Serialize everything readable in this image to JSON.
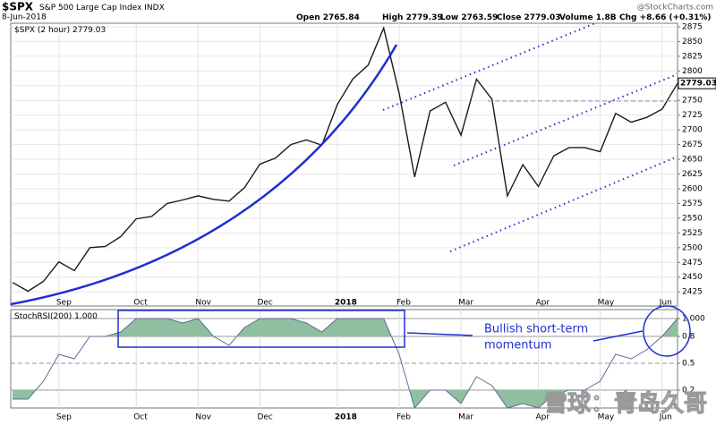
{
  "header": {
    "symbol": "$SPX",
    "name": "S&P 500 Large Cap Index",
    "exchange": "INDX",
    "source": "@StockCharts.com",
    "date": "8-Jun-2018",
    "quote": [
      {
        "label": "Open",
        "value": 2765.84
      },
      {
        "label": "High",
        "value": 2779.39
      },
      {
        "label": "Low",
        "value": 2763.59
      },
      {
        "label": "Close",
        "value": 2779.03
      },
      {
        "label": "Volume",
        "value": "1.8B"
      },
      {
        "label": "Chg",
        "value": "+8.66 (+0.31%)"
      }
    ]
  },
  "annotation": [
    "Bullish short-term",
    "momentum"
  ],
  "watermark": "雪球：青岛久哥",
  "chart_data": [
    {
      "type": "line",
      "categories": [
        null,
        null,
        null,
        "Sep",
        null,
        null,
        null,
        null,
        "Oct",
        null,
        null,
        null,
        "Nov",
        null,
        null,
        null,
        "Dec",
        null,
        null,
        null,
        null,
        "2018",
        null,
        null,
        null,
        "Feb",
        null,
        null,
        null,
        "Mar",
        null,
        null,
        null,
        null,
        "Apr",
        null,
        null,
        null,
        "May",
        null,
        null,
        null,
        "Jun",
        null
      ],
      "series": [
        {
          "name": "$SPX (2 hour)",
          "color": "#1a1a1a",
          "values": [
            2441,
            2426,
            2443,
            2476,
            2461,
            2500,
            2502,
            2519,
            2549,
            2553,
            2575,
            2581,
            2588,
            2582,
            2579,
            2602,
            2642,
            2652,
            2675,
            2683,
            2674,
            2743,
            2786,
            2810,
            2873,
            2762,
            2620,
            2732,
            2747,
            2691,
            2786,
            2752,
            2588,
            2641,
            2604,
            2656,
            2670,
            2670,
            2663,
            2728,
            2713,
            2721,
            2735,
            2779
          ]
        }
      ],
      "ylim": [
        2401,
        2881
      ],
      "yticks": [
        2425,
        2450,
        2475,
        2500,
        2525,
        2550,
        2575,
        2600,
        2625,
        2650,
        2675,
        2700,
        2725,
        2750,
        2775,
        2800,
        2825,
        2850,
        2875
      ],
      "grid": true
    },
    {
      "type": "line",
      "series": [
        {
          "name": "StochRSI(200)",
          "color": "#5b6d96",
          "values": [
            0.1,
            0.1,
            0.3,
            0.6,
            0.55,
            0.8,
            0.8,
            0.85,
            1,
            1,
            1,
            0.95,
            1,
            0.8,
            0.7,
            0.9,
            1,
            1,
            1,
            0.95,
            0.85,
            1,
            1,
            1,
            1,
            0.6,
            0,
            0.2,
            0.2,
            0.05,
            0.35,
            0.25,
            0,
            0.05,
            0,
            0.15,
            0.2,
            0.2,
            0.3,
            0.6,
            0.55,
            0.65,
            0.8,
            1
          ]
        }
      ],
      "last": {
        "value": 1,
        "label": "1.000"
      },
      "ylim": [
        0,
        1.1
      ],
      "yticks": [
        {
          "value": 1,
          "label": "1.000"
        },
        0.8,
        0.5,
        0.2
      ],
      "shade": {
        "color": "#8fbfa0",
        "above": 0.8,
        "below": 0.2
      },
      "grid": true
    }
  ]
}
